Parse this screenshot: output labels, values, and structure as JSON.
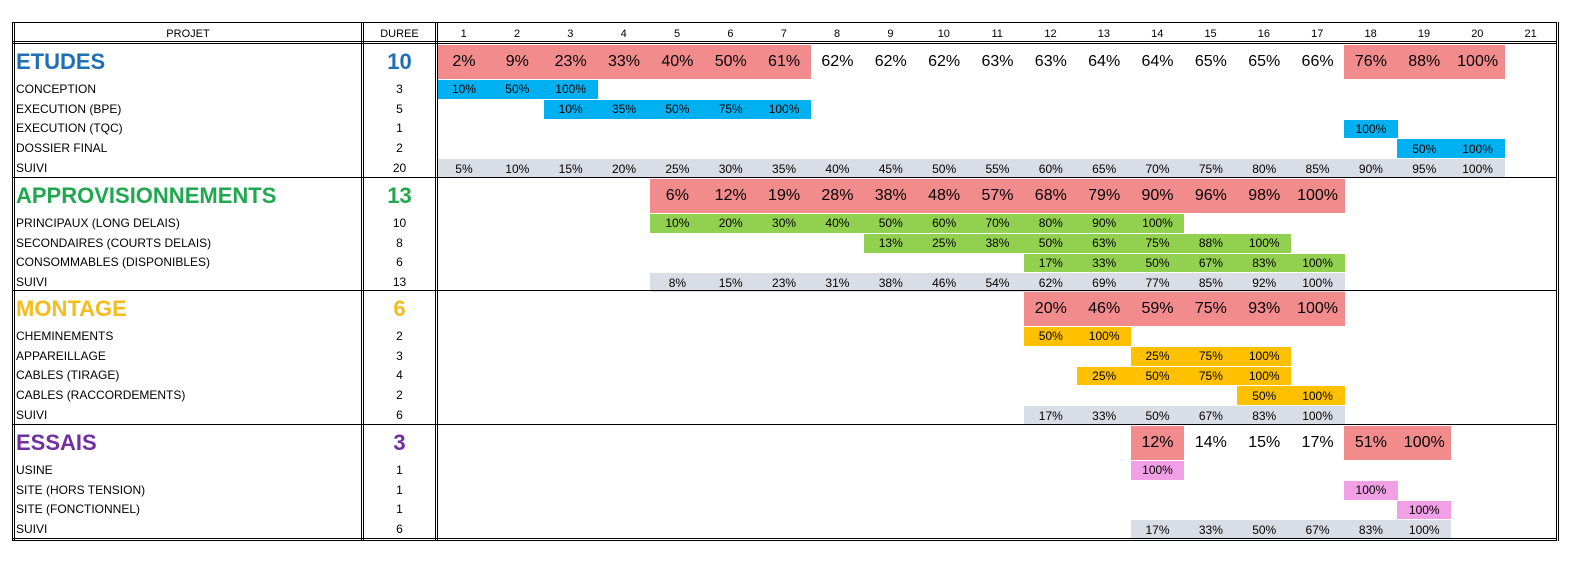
{
  "header": {
    "projet": "PROJET",
    "duree": "DUREE",
    "periods": [
      "1",
      "2",
      "3",
      "4",
      "5",
      "6",
      "7",
      "8",
      "9",
      "10",
      "11",
      "12",
      "13",
      "14",
      "15",
      "16",
      "17",
      "18",
      "19",
      "20",
      "21"
    ]
  },
  "colors": {
    "etudes": "#1f6fb4",
    "appro": "#1fa84f",
    "montage": "#f5bc1e",
    "essais": "#7030a0",
    "summary_fill": "#f28c8c",
    "blue": "#00b0f0",
    "green": "#92d050",
    "orange": "#ffc000",
    "pink": "#f2a0e6",
    "suivi_fill": "#d9dde6"
  },
  "sections": [
    {
      "title": "ETUDES",
      "duration": "10",
      "color_key": "etudes",
      "summary": {
        "start": 1,
        "values": [
          "2%",
          "9%",
          "23%",
          "33%",
          "40%",
          "50%",
          "61%",
          "62%",
          "62%",
          "62%",
          "63%",
          "63%",
          "64%",
          "64%",
          "65%",
          "65%",
          "66%",
          "76%",
          "88%",
          "100%"
        ],
        "filled": [
          1,
          2,
          3,
          4,
          5,
          6,
          7,
          18,
          19,
          20
        ]
      },
      "rows": [
        {
          "name": "CONCEPTION",
          "duration": "3",
          "start": 1,
          "values": [
            "10%",
            "50%",
            "100%"
          ],
          "fill": "blue"
        },
        {
          "name": "EXECUTION (BPE)",
          "duration": "5",
          "start": 3,
          "values": [
            "10%",
            "35%",
            "50%",
            "75%",
            "100%"
          ],
          "fill": "blue"
        },
        {
          "name": "EXECUTION (TQC)",
          "duration": "1",
          "start": 18,
          "values": [
            "100%"
          ],
          "fill": "blue"
        },
        {
          "name": "DOSSIER FINAL",
          "duration": "2",
          "start": 19,
          "values": [
            "50%",
            "100%"
          ],
          "fill": "blue"
        },
        {
          "name": "SUIVI",
          "duration": "20",
          "start": 1,
          "values": [
            "5%",
            "10%",
            "15%",
            "20%",
            "25%",
            "30%",
            "35%",
            "40%",
            "45%",
            "50%",
            "55%",
            "60%",
            "65%",
            "70%",
            "75%",
            "80%",
            "85%",
            "90%",
            "95%",
            "100%"
          ],
          "fill": "suivi"
        }
      ]
    },
    {
      "title": "APPROVISIONNEMENTS",
      "duration": "13",
      "color_key": "appro",
      "summary": {
        "start": 5,
        "values": [
          "6%",
          "12%",
          "19%",
          "28%",
          "38%",
          "48%",
          "57%",
          "68%",
          "79%",
          "90%",
          "96%",
          "98%",
          "100%"
        ],
        "filled": [
          5,
          6,
          7,
          8,
          9,
          10,
          11,
          12,
          13,
          14,
          15,
          16,
          17
        ]
      },
      "rows": [
        {
          "name": "PRINCIPAUX (LONG DELAIS)",
          "duration": "10",
          "start": 5,
          "values": [
            "10%",
            "20%",
            "30%",
            "40%",
            "50%",
            "60%",
            "70%",
            "80%",
            "90%",
            "100%"
          ],
          "fill": "green"
        },
        {
          "name": "SECONDAIRES (COURTS DELAIS)",
          "duration": "8",
          "start": 9,
          "values": [
            "13%",
            "25%",
            "38%",
            "50%",
            "63%",
            "75%",
            "88%",
            "100%"
          ],
          "fill": "green"
        },
        {
          "name": "CONSOMMABLES (DISPONIBLES)",
          "duration": "6",
          "start": 12,
          "values": [
            "17%",
            "33%",
            "50%",
            "67%",
            "83%",
            "100%"
          ],
          "fill": "green"
        },
        {
          "name": "SUIVI",
          "duration": "13",
          "start": 5,
          "values": [
            "8%",
            "15%",
            "23%",
            "31%",
            "38%",
            "46%",
            "54%",
            "62%",
            "69%",
            "77%",
            "85%",
            "92%",
            "100%"
          ],
          "fill": "suivi"
        }
      ]
    },
    {
      "title": "MONTAGE",
      "duration": "6",
      "color_key": "montage",
      "summary": {
        "start": 12,
        "values": [
          "20%",
          "46%",
          "59%",
          "75%",
          "93%",
          "100%"
        ],
        "filled": [
          12,
          13,
          14,
          15,
          16,
          17
        ]
      },
      "rows": [
        {
          "name": "CHEMINEMENTS",
          "duration": "2",
          "start": 12,
          "values": [
            "50%",
            "100%"
          ],
          "fill": "orange"
        },
        {
          "name": "APPAREILLAGE",
          "duration": "3",
          "start": 14,
          "values": [
            "25%",
            "75%",
            "100%"
          ],
          "fill": "orange"
        },
        {
          "name": "CABLES (TIRAGE)",
          "duration": "4",
          "start": 13,
          "values": [
            "25%",
            "50%",
            "75%",
            "100%"
          ],
          "fill": "orange"
        },
        {
          "name": "CABLES (RACCORDEMENTS)",
          "duration": "2",
          "start": 16,
          "values": [
            "50%",
            "100%"
          ],
          "fill": "orange"
        },
        {
          "name": "SUIVI",
          "duration": "6",
          "start": 12,
          "values": [
            "17%",
            "33%",
            "50%",
            "67%",
            "83%",
            "100%"
          ],
          "fill": "suivi"
        }
      ]
    },
    {
      "title": "ESSAIS",
      "duration": "3",
      "color_key": "essais",
      "summary": {
        "start": 14,
        "values": [
          "12%",
          "14%",
          "15%",
          "17%",
          "51%",
          "100%"
        ],
        "filled": [
          14,
          18,
          19
        ]
      },
      "rows": [
        {
          "name": "USINE",
          "duration": "1",
          "start": 14,
          "values": [
            "100%"
          ],
          "fill": "pink"
        },
        {
          "name": "SITE (HORS TENSION)",
          "duration": "1",
          "start": 18,
          "values": [
            "100%"
          ],
          "fill": "pink"
        },
        {
          "name": "SITE (FONCTIONNEL)",
          "duration": "1",
          "start": 19,
          "values": [
            "100%"
          ],
          "fill": "pink"
        },
        {
          "name": "SUIVI",
          "duration": "6",
          "start": 14,
          "values": [
            "17%",
            "33%",
            "50%",
            "67%",
            "83%",
            "100%"
          ],
          "fill": "suivi"
        }
      ]
    }
  ]
}
